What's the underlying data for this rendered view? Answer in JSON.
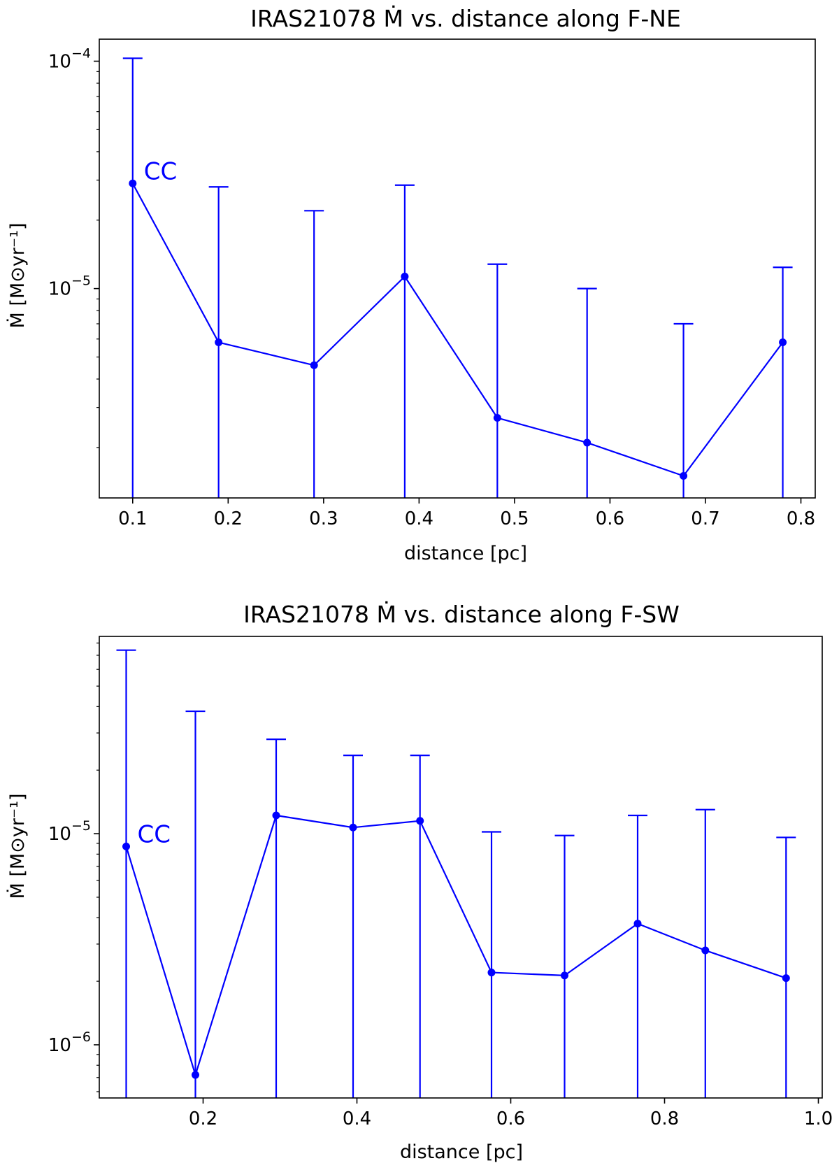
{
  "colors": {
    "series": "#0000ff",
    "axes": "#000000"
  },
  "chart_data": [
    {
      "type": "line",
      "title": "IRAS21078 Ṁ vs. distance along F-NE",
      "xlabel": "distance [pc]",
      "ylabel": "Ṁ [M⊙yr⁻¹]",
      "yscale": "log",
      "xlim": [
        0.065,
        0.815
      ],
      "ylim": [
        1.2e-06,
        0.000125
      ],
      "xticks": [
        0.1,
        0.2,
        0.3,
        0.4,
        0.5,
        0.6,
        0.7,
        0.8
      ],
      "xtick_labels": [
        "0.1",
        "0.2",
        "0.3",
        "0.4",
        "0.5",
        "0.6",
        "0.7",
        "0.8"
      ],
      "yticks": [
        {
          "value": 0.0001,
          "base": "10",
          "exp": "−4"
        },
        {
          "value": 1e-05,
          "base": "10",
          "exp": "−5"
        }
      ],
      "annotation": {
        "text": "CC",
        "x": 0.1,
        "y": 2.9e-05
      },
      "x": [
        0.1,
        0.19,
        0.29,
        0.385,
        0.482,
        0.576,
        0.677,
        0.781
      ],
      "y": [
        2.9e-05,
        5.8e-06,
        4.6e-06,
        1.13e-05,
        2.7e-06,
        2.1e-06,
        1.5e-06,
        5.8e-06
      ],
      "yerr_upper": [
        0.000103,
        2.8e-05,
        2.2e-05,
        2.85e-05,
        1.28e-05,
        1e-05,
        7e-06,
        1.24e-05
      ]
    },
    {
      "type": "line",
      "title": "IRAS21078 Ṁ vs. distance along F-SW",
      "xlabel": "distance [pc]",
      "ylabel": "Ṁ [M⊙yr⁻¹]",
      "yscale": "log",
      "xlim": [
        0.065,
        1.005
      ],
      "ylim": [
        5.6e-07,
        8.6e-05
      ],
      "xticks": [
        0.2,
        0.4,
        0.6,
        0.8,
        1.0
      ],
      "xtick_labels": [
        "0.2",
        "0.4",
        "0.6",
        "0.8",
        "1.0"
      ],
      "yticks": [
        {
          "value": 1e-05,
          "base": "10",
          "exp": "−5"
        },
        {
          "value": 1e-06,
          "base": "10",
          "exp": "−6"
        }
      ],
      "annotation": {
        "text": "CC",
        "x": 0.1,
        "y": 8.7e-06
      },
      "x": [
        0.1,
        0.19,
        0.295,
        0.395,
        0.482,
        0.575,
        0.67,
        0.765,
        0.853,
        0.958
      ],
      "y": [
        8.7e-06,
        7.2e-07,
        1.22e-05,
        1.07e-05,
        1.15e-05,
        2.2e-06,
        2.13e-06,
        3.75e-06,
        2.8e-06,
        2.07e-06
      ],
      "yerr_upper": [
        7.4e-05,
        3.8e-05,
        2.8e-05,
        2.35e-05,
        2.35e-05,
        1.02e-05,
        9.8e-06,
        1.22e-05,
        1.3e-05,
        9.6e-06
      ]
    }
  ]
}
